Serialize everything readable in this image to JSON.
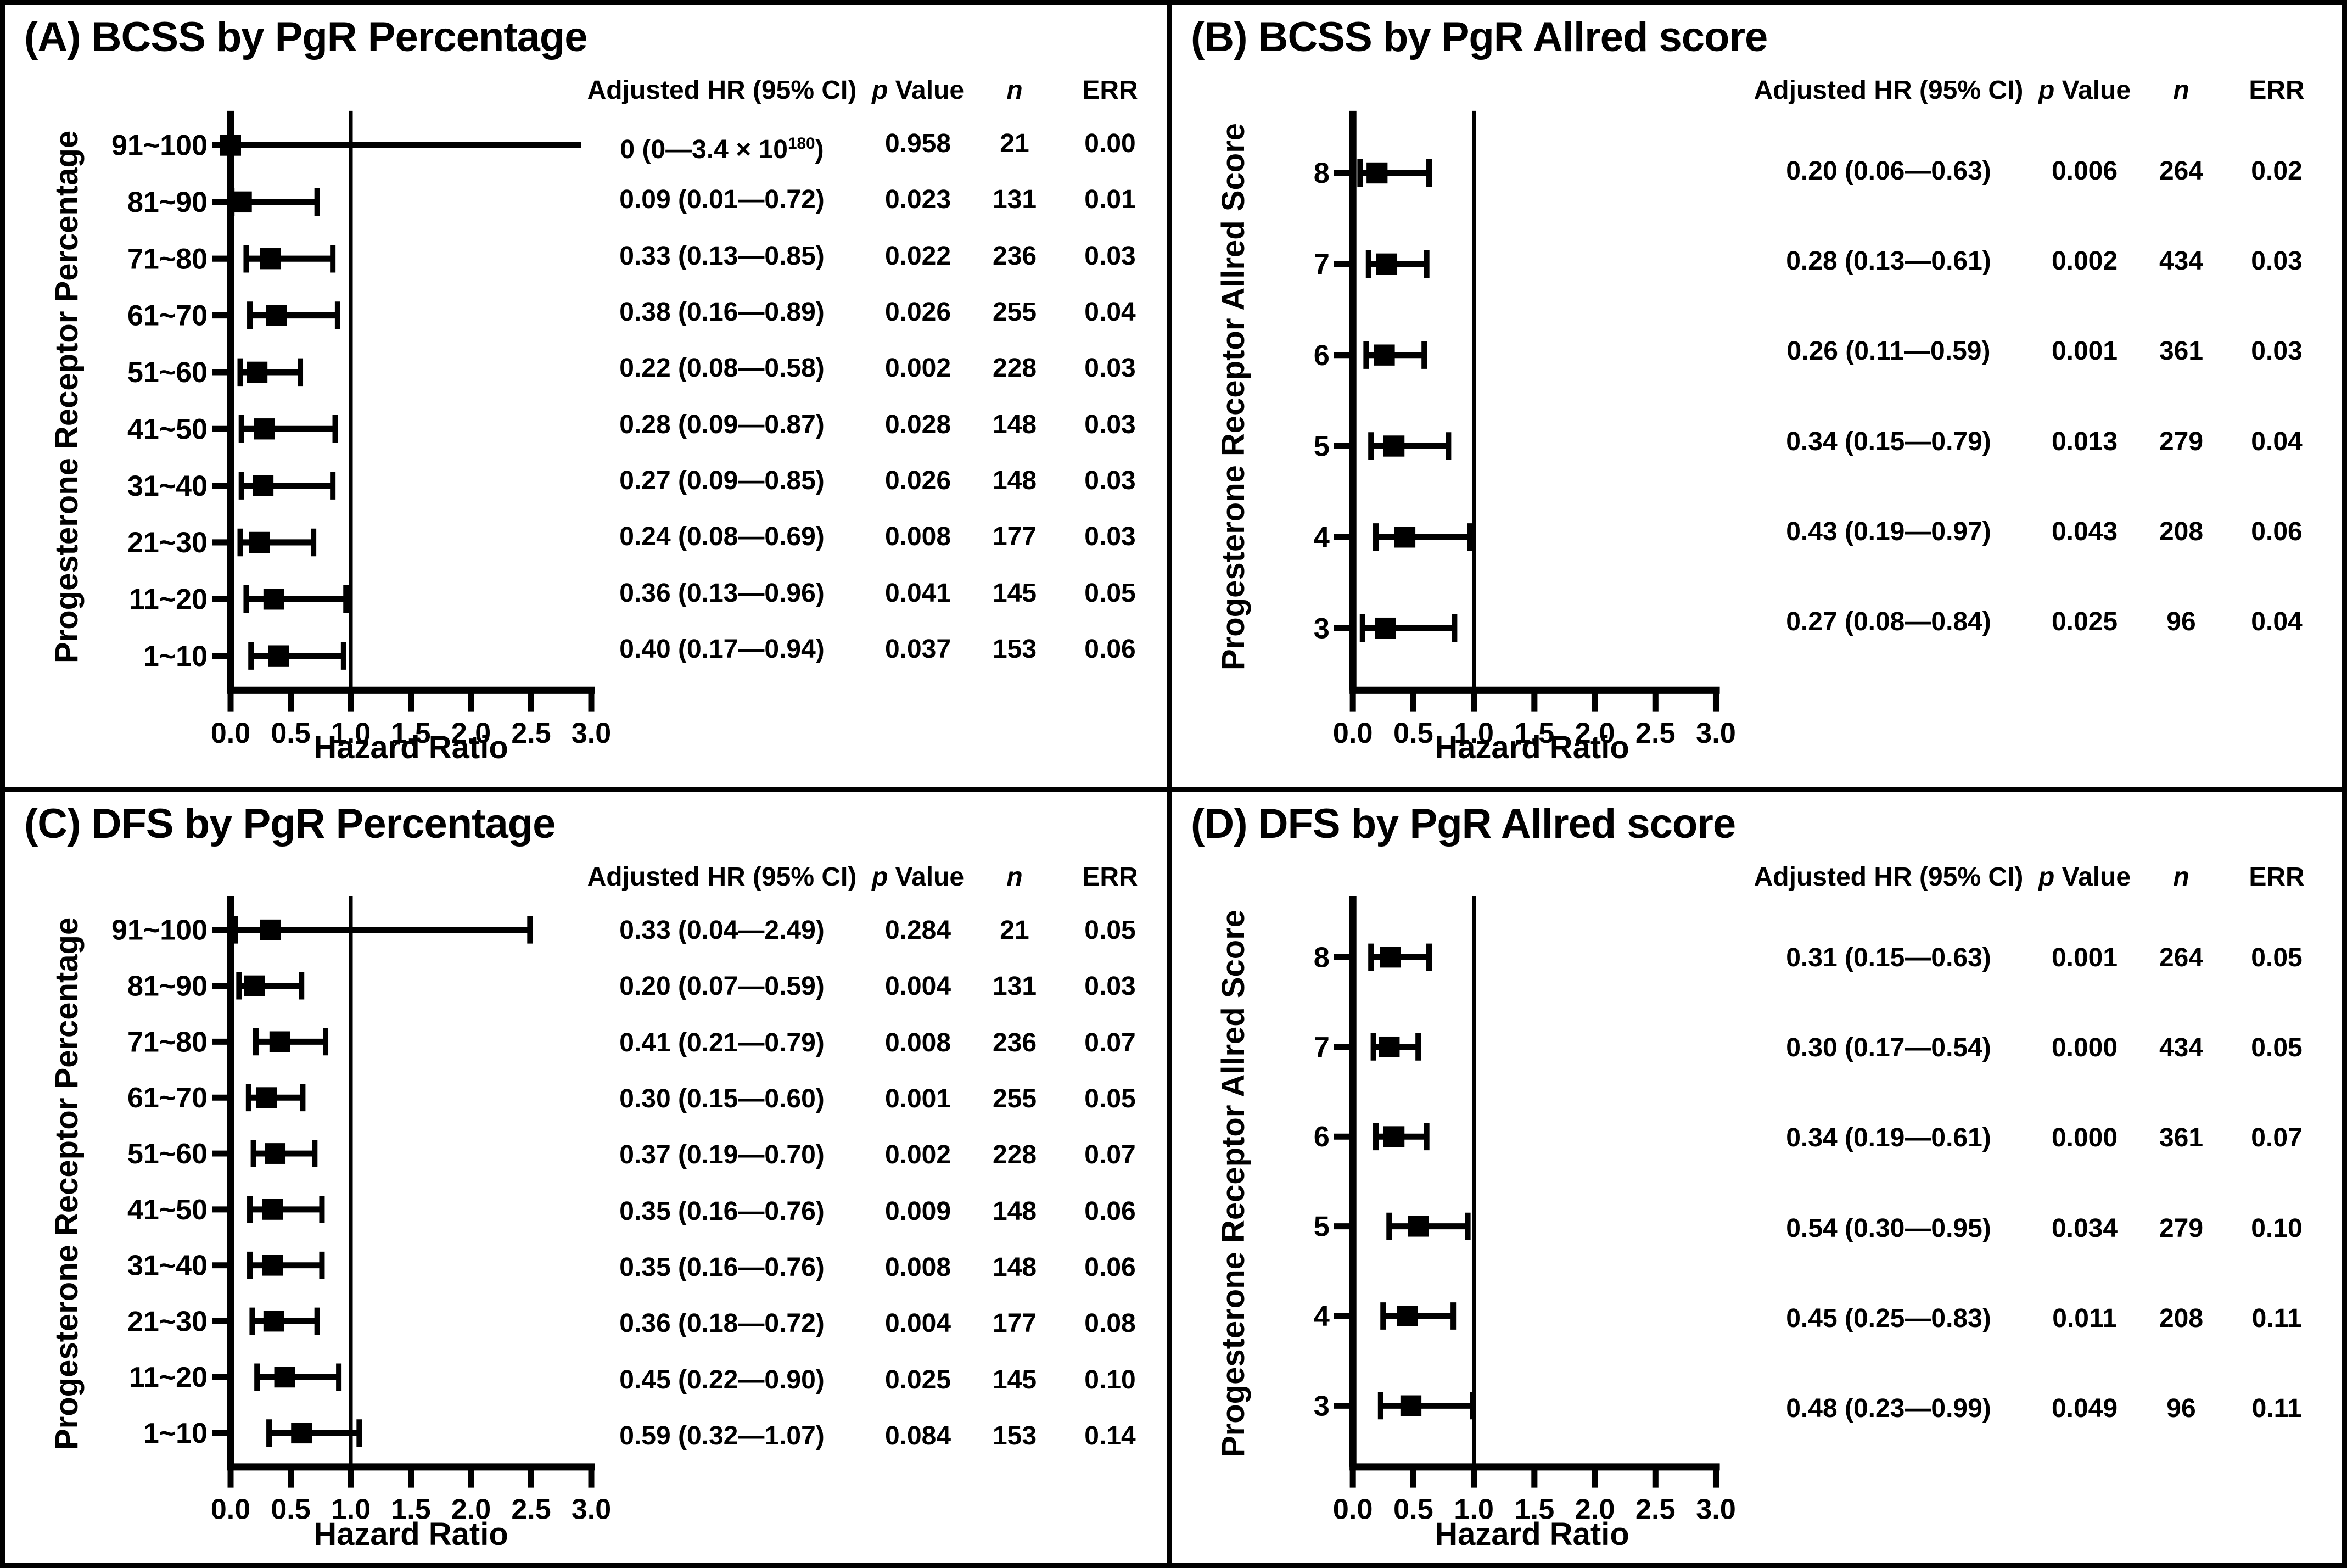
{
  "page": {
    "background": "#ffffff",
    "line_color": "#000000"
  },
  "axis": {
    "xlabel": "Hazard Ratio",
    "tick_labels": [
      "0.0",
      "0.5",
      "1.0",
      "1.5",
      "2.0",
      "2.5",
      "3.0"
    ],
    "xmin": 0,
    "xmax": 3,
    "reference_line": 1.0,
    "grid": false
  },
  "table_headers": {
    "ci": "Adjusted HR (95% CI)",
    "p_italic_part": "p",
    "p_rest_part": " Value",
    "n": "n",
    "err": "ERR"
  },
  "chart_data": [
    {
      "panel": "A",
      "type": "scatter",
      "variant": "forest-plot",
      "title": "(A) BCSS by PgR Percentage",
      "ylabel": "Progesterone Receptor Percentage",
      "xlabel": "Hazard Ratio",
      "xlim": [
        0,
        3
      ],
      "x_ticks": [
        0.0,
        0.5,
        1.0,
        1.5,
        2.0,
        2.5,
        3.0
      ],
      "reference_line": 1.0,
      "rows": [
        {
          "label": "91~100",
          "hr": 0,
          "lo": 0,
          "hi": 3.4e+180,
          "ci_text": "0 (0—3.4 × 10^180)",
          "p": "0.958",
          "n": "21",
          "err": "0.00"
        },
        {
          "label": "81~90",
          "hr": 0.09,
          "lo": 0.01,
          "hi": 0.72,
          "ci_text": "0.09 (0.01—0.72)",
          "p": "0.023",
          "n": "131",
          "err": "0.01"
        },
        {
          "label": "71~80",
          "hr": 0.33,
          "lo": 0.13,
          "hi": 0.85,
          "ci_text": "0.33 (0.13—0.85)",
          "p": "0.022",
          "n": "236",
          "err": "0.03"
        },
        {
          "label": "61~70",
          "hr": 0.38,
          "lo": 0.16,
          "hi": 0.89,
          "ci_text": "0.38 (0.16—0.89)",
          "p": "0.026",
          "n": "255",
          "err": "0.04"
        },
        {
          "label": "51~60",
          "hr": 0.22,
          "lo": 0.08,
          "hi": 0.58,
          "ci_text": "0.22 (0.08—0.58)",
          "p": "0.002",
          "n": "228",
          "err": "0.03"
        },
        {
          "label": "41~50",
          "hr": 0.28,
          "lo": 0.09,
          "hi": 0.87,
          "ci_text": "0.28 (0.09—0.87)",
          "p": "0.028",
          "n": "148",
          "err": "0.03"
        },
        {
          "label": "31~40",
          "hr": 0.27,
          "lo": 0.09,
          "hi": 0.85,
          "ci_text": "0.27 (0.09—0.85)",
          "p": "0.026",
          "n": "148",
          "err": "0.03"
        },
        {
          "label": "21~30",
          "hr": 0.24,
          "lo": 0.08,
          "hi": 0.69,
          "ci_text": "0.24 (0.08—0.69)",
          "p": "0.008",
          "n": "177",
          "err": "0.03"
        },
        {
          "label": "11~20",
          "hr": 0.36,
          "lo": 0.13,
          "hi": 0.96,
          "ci_text": "0.36 (0.13—0.96)",
          "p": "0.041",
          "n": "145",
          "err": "0.05"
        },
        {
          "label": "1~10",
          "hr": 0.4,
          "lo": 0.17,
          "hi": 0.94,
          "ci_text": "0.40 (0.17—0.94)",
          "p": "0.037",
          "n": "153",
          "err": "0.06"
        }
      ]
    },
    {
      "panel": "B",
      "type": "scatter",
      "variant": "forest-plot",
      "title": "(B) BCSS by PgR Allred score",
      "ylabel": "Progesterone Receptor Allred Score",
      "xlabel": "Hazard Ratio",
      "xlim": [
        0,
        3
      ],
      "x_ticks": [
        0.0,
        0.5,
        1.0,
        1.5,
        2.0,
        2.5,
        3.0
      ],
      "reference_line": 1.0,
      "rows": [
        {
          "label": "8",
          "hr": 0.2,
          "lo": 0.06,
          "hi": 0.63,
          "ci_text": "0.20 (0.06—0.63)",
          "p": "0.006",
          "n": "264",
          "err": "0.02"
        },
        {
          "label": "7",
          "hr": 0.28,
          "lo": 0.13,
          "hi": 0.61,
          "ci_text": "0.28 (0.13—0.61)",
          "p": "0.002",
          "n": "434",
          "err": "0.03"
        },
        {
          "label": "6",
          "hr": 0.26,
          "lo": 0.11,
          "hi": 0.59,
          "ci_text": "0.26 (0.11—0.59)",
          "p": "0.001",
          "n": "361",
          "err": "0.03"
        },
        {
          "label": "5",
          "hr": 0.34,
          "lo": 0.15,
          "hi": 0.79,
          "ci_text": "0.34 (0.15—0.79)",
          "p": "0.013",
          "n": "279",
          "err": "0.04"
        },
        {
          "label": "4",
          "hr": 0.43,
          "lo": 0.19,
          "hi": 0.97,
          "ci_text": "0.43 (0.19—0.97)",
          "p": "0.043",
          "n": "208",
          "err": "0.06"
        },
        {
          "label": "3",
          "hr": 0.27,
          "lo": 0.08,
          "hi": 0.84,
          "ci_text": "0.27 (0.08—0.84)",
          "p": "0.025",
          "n": "96",
          "err": "0.04"
        }
      ]
    },
    {
      "panel": "C",
      "type": "scatter",
      "variant": "forest-plot",
      "title": "(C) DFS by PgR Percentage",
      "ylabel": "Progesterone Receptor Percentage",
      "xlabel": "Hazard Ratio",
      "xlim": [
        0,
        3
      ],
      "x_ticks": [
        0.0,
        0.5,
        1.0,
        1.5,
        2.0,
        2.5,
        3.0
      ],
      "reference_line": 1.0,
      "rows": [
        {
          "label": "91~100",
          "hr": 0.33,
          "lo": 0.04,
          "hi": 2.49,
          "ci_text": "0.33 (0.04—2.49)",
          "p": "0.284",
          "n": "21",
          "err": "0.05"
        },
        {
          "label": "81~90",
          "hr": 0.2,
          "lo": 0.07,
          "hi": 0.59,
          "ci_text": "0.20 (0.07—0.59)",
          "p": "0.004",
          "n": "131",
          "err": "0.03"
        },
        {
          "label": "71~80",
          "hr": 0.41,
          "lo": 0.21,
          "hi": 0.79,
          "ci_text": "0.41 (0.21—0.79)",
          "p": "0.008",
          "n": "236",
          "err": "0.07"
        },
        {
          "label": "61~70",
          "hr": 0.3,
          "lo": 0.15,
          "hi": 0.6,
          "ci_text": "0.30 (0.15—0.60)",
          "p": "0.001",
          "n": "255",
          "err": "0.05"
        },
        {
          "label": "51~60",
          "hr": 0.37,
          "lo": 0.19,
          "hi": 0.7,
          "ci_text": "0.37 (0.19—0.70)",
          "p": "0.002",
          "n": "228",
          "err": "0.07"
        },
        {
          "label": "41~50",
          "hr": 0.35,
          "lo": 0.16,
          "hi": 0.76,
          "ci_text": "0.35 (0.16—0.76)",
          "p": "0.009",
          "n": "148",
          "err": "0.06"
        },
        {
          "label": "31~40",
          "hr": 0.35,
          "lo": 0.16,
          "hi": 0.76,
          "ci_text": "0.35 (0.16—0.76)",
          "p": "0.008",
          "n": "148",
          "err": "0.06"
        },
        {
          "label": "21~30",
          "hr": 0.36,
          "lo": 0.18,
          "hi": 0.72,
          "ci_text": "0.36 (0.18—0.72)",
          "p": "0.004",
          "n": "177",
          "err": "0.08"
        },
        {
          "label": "11~20",
          "hr": 0.45,
          "lo": 0.22,
          "hi": 0.9,
          "ci_text": "0.45 (0.22—0.90)",
          "p": "0.025",
          "n": "145",
          "err": "0.10"
        },
        {
          "label": "1~10",
          "hr": 0.59,
          "lo": 0.32,
          "hi": 1.07,
          "ci_text": "0.59 (0.32—1.07)",
          "p": "0.084",
          "n": "153",
          "err": "0.14"
        }
      ]
    },
    {
      "panel": "D",
      "type": "scatter",
      "variant": "forest-plot",
      "title": "(D) DFS by PgR Allred score",
      "ylabel": "Progesterone Receptor Allred Score",
      "xlabel": "Hazard Ratio",
      "xlim": [
        0,
        3
      ],
      "x_ticks": [
        0.0,
        0.5,
        1.0,
        1.5,
        2.0,
        2.5,
        3.0
      ],
      "reference_line": 1.0,
      "rows": [
        {
          "label": "8",
          "hr": 0.31,
          "lo": 0.15,
          "hi": 0.63,
          "ci_text": "0.31 (0.15—0.63)",
          "p": "0.001",
          "n": "264",
          "err": "0.05"
        },
        {
          "label": "7",
          "hr": 0.3,
          "lo": 0.17,
          "hi": 0.54,
          "ci_text": "0.30 (0.17—0.54)",
          "p": "0.000",
          "n": "434",
          "err": "0.05"
        },
        {
          "label": "6",
          "hr": 0.34,
          "lo": 0.19,
          "hi": 0.61,
          "ci_text": "0.34 (0.19—0.61)",
          "p": "0.000",
          "n": "361",
          "err": "0.07"
        },
        {
          "label": "5",
          "hr": 0.54,
          "lo": 0.3,
          "hi": 0.95,
          "ci_text": "0.54 (0.30—0.95)",
          "p": "0.034",
          "n": "279",
          "err": "0.10"
        },
        {
          "label": "4",
          "hr": 0.45,
          "lo": 0.25,
          "hi": 0.83,
          "ci_text": "0.45 (0.25—0.83)",
          "p": "0.011",
          "n": "208",
          "err": "0.11"
        },
        {
          "label": "3",
          "hr": 0.48,
          "lo": 0.23,
          "hi": 0.99,
          "ci_text": "0.48 (0.23—0.99)",
          "p": "0.049",
          "n": "96",
          "err": "0.11"
        }
      ]
    }
  ]
}
